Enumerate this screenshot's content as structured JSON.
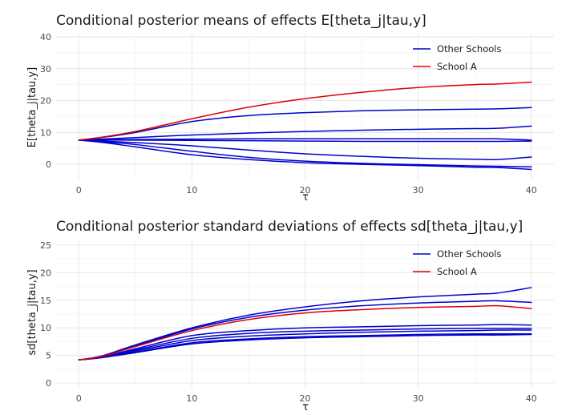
{
  "chart_data": [
    {
      "type": "line",
      "title": "Conditional posterior means of effects E[theta_j|tau,y]",
      "xlabel": "τ",
      "ylabel": "E[theta_j|tau,y]",
      "xlim": [
        -2,
        42
      ],
      "ylim": [
        -5,
        41
      ],
      "xticks": [
        0,
        10,
        20,
        30,
        40
      ],
      "yticks": [
        0,
        10,
        20,
        30,
        40
      ],
      "grid": true,
      "legend_position": "top-right",
      "legend": [
        {
          "label": "Other Schools",
          "color": "#0000cc"
        },
        {
          "label": "School A",
          "color": "#dd0000"
        }
      ],
      "x": [
        0,
        2,
        5,
        10,
        15,
        20,
        25,
        30,
        35,
        37,
        40
      ],
      "series": [
        {
          "group": "School A",
          "color": "#dd0000",
          "values": [
            7.6,
            8.5,
            10.3,
            14.3,
            17.9,
            20.6,
            22.6,
            24.1,
            25.0,
            25.2,
            25.8
          ]
        },
        {
          "group": "Other Schools",
          "color": "#0000cc",
          "values": [
            7.6,
            8.4,
            10.0,
            13.4,
            15.3,
            16.2,
            16.8,
            17.1,
            17.3,
            17.4,
            17.8
          ]
        },
        {
          "group": "Other Schools",
          "color": "#0000cc",
          "values": [
            7.6,
            7.9,
            8.4,
            9.2,
            9.8,
            10.3,
            10.7,
            11.0,
            11.2,
            11.3,
            12.0
          ]
        },
        {
          "group": "Other Schools",
          "color": "#0000cc",
          "values": [
            7.6,
            7.7,
            7.8,
            7.9,
            8.0,
            8.0,
            8.0,
            8.0,
            8.0,
            8.0,
            7.6
          ]
        },
        {
          "group": "Other Schools",
          "color": "#0000cc",
          "values": [
            7.6,
            7.6,
            7.6,
            7.5,
            7.4,
            7.3,
            7.2,
            7.2,
            7.2,
            7.2,
            7.3
          ]
        },
        {
          "group": "Other Schools",
          "color": "#0000cc",
          "values": [
            7.6,
            7.3,
            6.8,
            5.8,
            4.5,
            3.3,
            2.5,
            1.9,
            1.6,
            1.5,
            2.3
          ]
        },
        {
          "group": "Other Schools",
          "color": "#0000cc",
          "values": [
            7.6,
            7.1,
            6.2,
            4.1,
            2.2,
            1.0,
            0.3,
            -0.1,
            -0.5,
            -0.6,
            -0.8
          ]
        },
        {
          "group": "Other Schools",
          "color": "#0000cc",
          "values": [
            7.6,
            6.9,
            5.5,
            3.0,
            1.5,
            0.5,
            0.0,
            -0.4,
            -0.9,
            -1.0,
            -1.6
          ]
        }
      ]
    },
    {
      "type": "line",
      "title": "Conditional posterior standard deviations of effects sd[theta_j|tau,y]",
      "xlabel": "τ",
      "ylabel": "sd[theta_j|tau,y]",
      "xlim": [
        -2,
        42
      ],
      "ylim": [
        -1,
        26
      ],
      "xticks": [
        0,
        10,
        20,
        30,
        40
      ],
      "yticks": [
        0,
        5,
        10,
        15,
        20,
        25
      ],
      "grid": true,
      "legend_position": "top-right",
      "legend": [
        {
          "label": "Other Schools",
          "color": "#0000cc"
        },
        {
          "label": "School A",
          "color": "#dd0000"
        }
      ],
      "x": [
        0,
        2,
        5,
        10,
        15,
        20,
        25,
        30,
        35,
        37,
        40
      ],
      "series": [
        {
          "group": "School A",
          "color": "#dd0000",
          "values": [
            4.2,
            4.8,
            6.6,
            9.5,
            11.5,
            12.7,
            13.3,
            13.7,
            13.9,
            14.0,
            13.5
          ]
        },
        {
          "group": "Other Schools",
          "color": "#0000cc",
          "values": [
            4.2,
            4.9,
            6.9,
            10.0,
            12.3,
            13.8,
            14.9,
            15.6,
            16.1,
            16.3,
            17.3
          ]
        },
        {
          "group": "Other Schools",
          "color": "#0000cc",
          "values": [
            4.2,
            4.8,
            6.7,
            9.8,
            11.9,
            13.2,
            14.0,
            14.5,
            14.8,
            14.9,
            14.6
          ]
        },
        {
          "group": "Other Schools",
          "color": "#0000cc",
          "values": [
            4.2,
            4.7,
            6.2,
            8.6,
            9.5,
            10.0,
            10.2,
            10.4,
            10.5,
            10.6,
            10.5
          ]
        },
        {
          "group": "Other Schools",
          "color": "#0000cc",
          "values": [
            4.2,
            4.7,
            6.0,
            8.1,
            9.0,
            9.4,
            9.6,
            9.8,
            9.9,
            9.9,
            9.9
          ]
        },
        {
          "group": "Other Schools",
          "color": "#0000cc",
          "values": [
            4.2,
            4.6,
            5.8,
            7.7,
            8.5,
            8.9,
            9.2,
            9.4,
            9.5,
            9.6,
            9.6
          ]
        },
        {
          "group": "Other Schools",
          "color": "#0000cc",
          "values": [
            4.2,
            4.6,
            5.6,
            7.3,
            8.0,
            8.4,
            8.6,
            8.8,
            8.9,
            8.9,
            8.9
          ]
        },
        {
          "group": "Other Schools",
          "color": "#0000cc",
          "values": [
            4.2,
            4.6,
            5.5,
            7.1,
            7.8,
            8.2,
            8.4,
            8.6,
            8.7,
            8.7,
            8.8
          ]
        }
      ]
    }
  ]
}
